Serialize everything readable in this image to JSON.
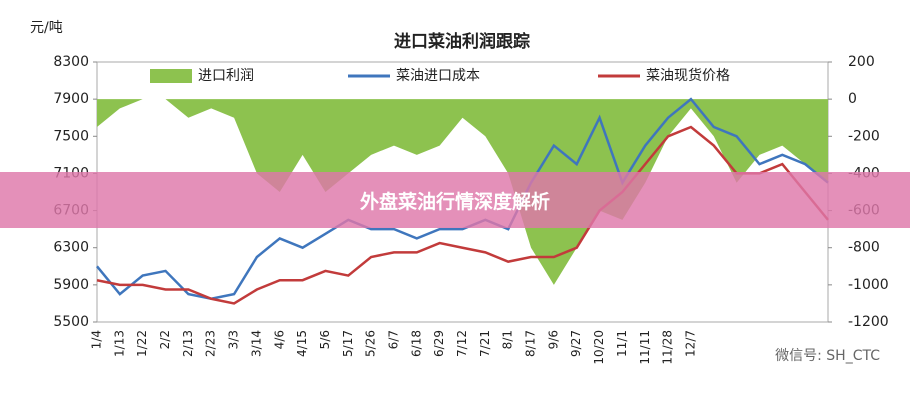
{
  "chart_data": {
    "type": "line",
    "title": "进口菜油利润跟踪",
    "y_label": "元/吨",
    "categories": [
      "1/4",
      "1/13",
      "1/22",
      "2/2",
      "2/13",
      "2/23",
      "3/3",
      "3/14",
      "4/6",
      "4/15",
      "5/6",
      "5/17",
      "5/26",
      "6/7",
      "6/18",
      "6/29",
      "7/12",
      "7/21",
      "8/1",
      "8/17",
      "9/6",
      "9/27",
      "10/20",
      "11/1",
      "11/11",
      "11/28",
      "12/7",
      null,
      null,
      null,
      null,
      null,
      null
    ],
    "series": [
      {
        "name": "进口利润",
        "type": "area",
        "axis": "y2",
        "color": "#8dc24f",
        "values": [
          -150,
          -50,
          0,
          0,
          -100,
          -50,
          -100,
          -400,
          -500,
          -300,
          -500,
          -400,
          -300,
          -250,
          -300,
          -250,
          -100,
          -200,
          -400,
          -800,
          -1000,
          -800,
          -600,
          -650,
          -450,
          -200,
          -50,
          -200,
          -450,
          -300,
          -250,
          -350,
          -450
        ]
      },
      {
        "name": "菜油进口成本",
        "type": "line",
        "color": "#3f76bd",
        "values": [
          6100,
          5800,
          6000,
          6050,
          5800,
          5750,
          5800,
          6200,
          6400,
          6300,
          6450,
          6600,
          6500,
          6500,
          6400,
          6500,
          6500,
          6600,
          6500,
          7000,
          7400,
          7200,
          7700,
          7000,
          7400,
          7700,
          7900,
          7600,
          7500,
          7200,
          7300,
          7200,
          7000
        ]
      },
      {
        "name": "菜油现货价格",
        "type": "line",
        "color": "#c23b3b",
        "values": [
          5950,
          5900,
          5900,
          5850,
          5850,
          5750,
          5700,
          5850,
          5950,
          5950,
          6050,
          6000,
          6200,
          6250,
          6250,
          6350,
          6300,
          6250,
          6150,
          6200,
          6200,
          6300,
          6700,
          6900,
          7200,
          7500,
          7600,
          7400,
          7100,
          7100,
          7200,
          6900,
          6600
        ]
      }
    ],
    "ylim": [
      5500,
      8300
    ],
    "yticks": [
      5500,
      5900,
      6300,
      6700,
      7100,
      7500,
      7900,
      8300
    ],
    "y2lim": [
      -1200,
      200
    ],
    "y2ticks": [
      -1200,
      -1000,
      -800,
      -600,
      -400,
      -200,
      0,
      200
    ],
    "grid": false,
    "legend": "top"
  },
  "banner": "外盘菜油行情深度解析",
  "watermark": "微信号: SH_CTC"
}
